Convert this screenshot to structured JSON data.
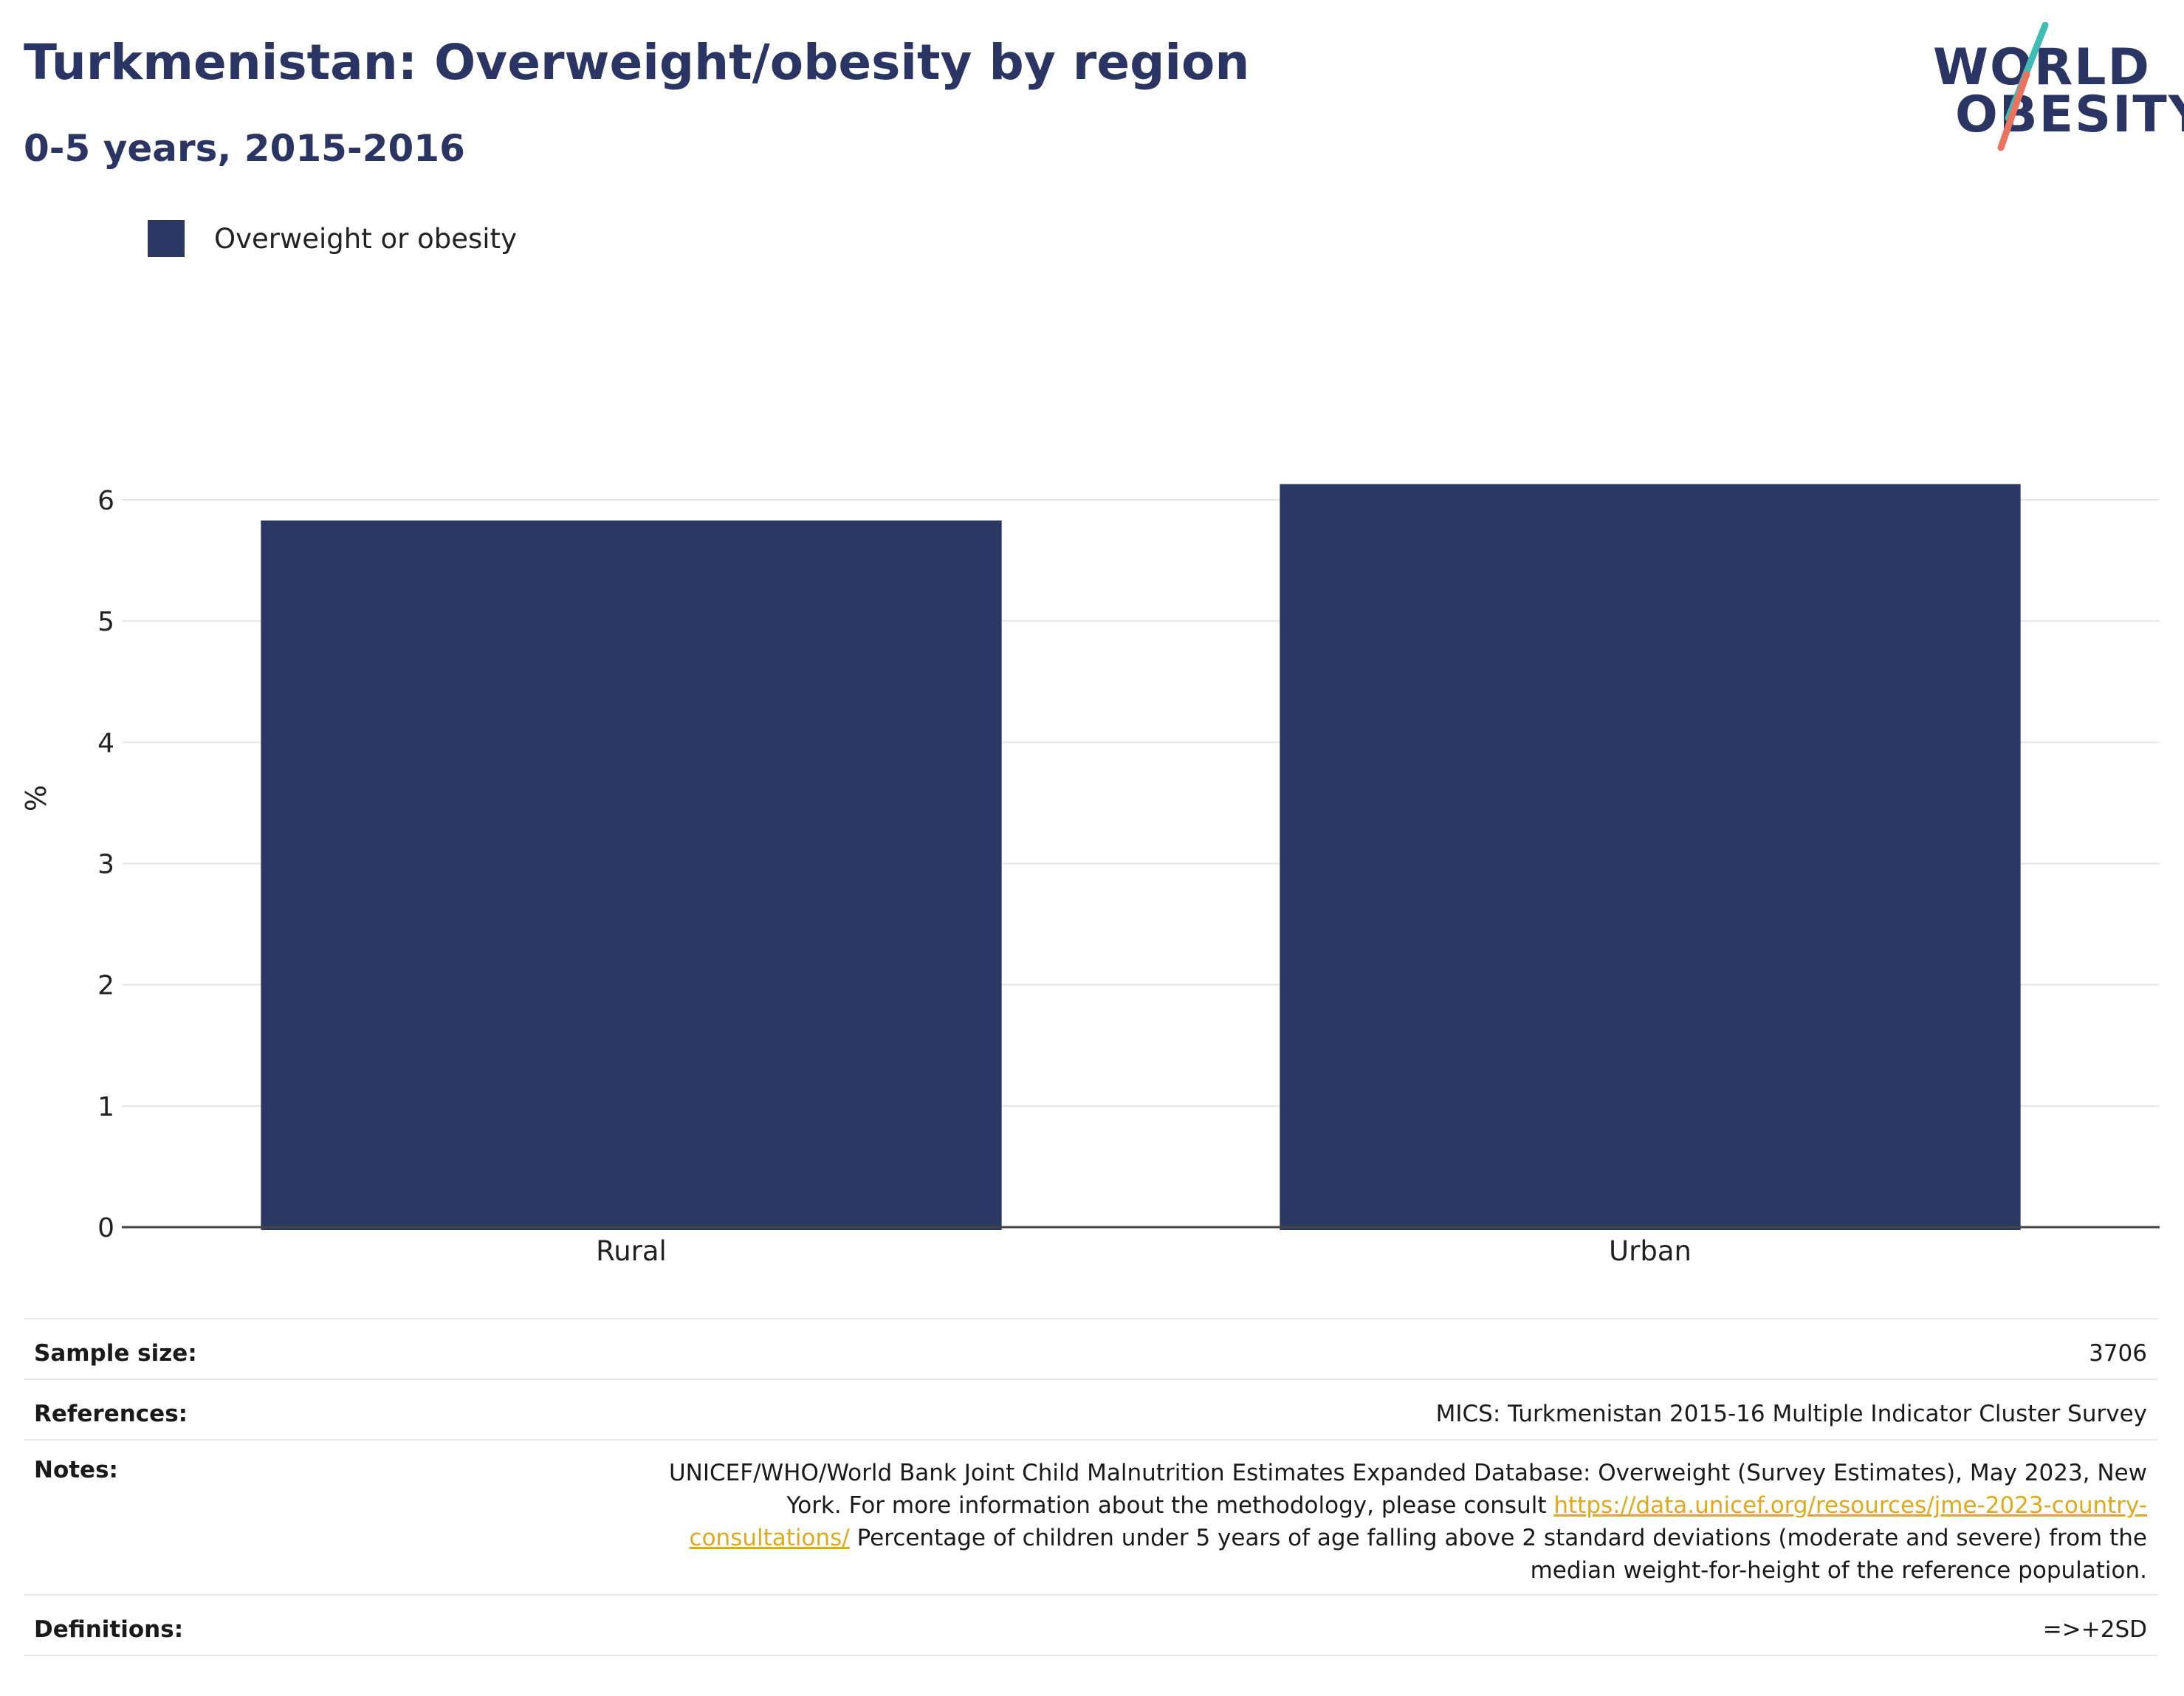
{
  "header": {
    "title": "Turkmenistan: Overweight/obesity by region",
    "subtitle": "0-5 years, 2015-2016"
  },
  "logo": {
    "line1": "WORLD",
    "line2": "OBESITY",
    "colors": {
      "navy": "#2b3563",
      "teal": "#3dbdb5",
      "coral": "#e8735f"
    }
  },
  "legend": {
    "label": "Overweight or obesity",
    "color": "#2b3763"
  },
  "chart_data": {
    "type": "bar",
    "categories": [
      "Rural",
      "Urban"
    ],
    "series": [
      {
        "name": "Overweight or obesity",
        "values": [
          5.83,
          6.13
        ],
        "color": "#2b3763"
      }
    ],
    "ylabel": "%",
    "xlabel": "",
    "ylim": [
      0,
      7.2
    ],
    "yticks": [
      0,
      1,
      2,
      3,
      4,
      5,
      6
    ],
    "grid": true,
    "legend_position": "top-left"
  },
  "meta": {
    "sample_size_label": "Sample size:",
    "sample_size_value": "3706",
    "references_label": "References:",
    "references_value": "MICS: Turkmenistan 2015-16 Multiple Indicator Cluster Survey",
    "notes_label": "Notes:",
    "notes_text_1": "UNICEF/WHO/World Bank Joint Child Malnutrition Estimates Expanded Database: Overweight (Survey Estimates), May 2023, New York. For more information about the methodology, please consult ",
    "notes_link": "https://data.unicef.org/resources/jme-2023-country-consultations/",
    "notes_text_2": " Percentage of children under 5 years of age falling above 2 standard deviations (moderate and severe) from the median weight-for-height of the reference population.",
    "definitions_label": "Definitions:",
    "definitions_value": "=>+2SD"
  }
}
